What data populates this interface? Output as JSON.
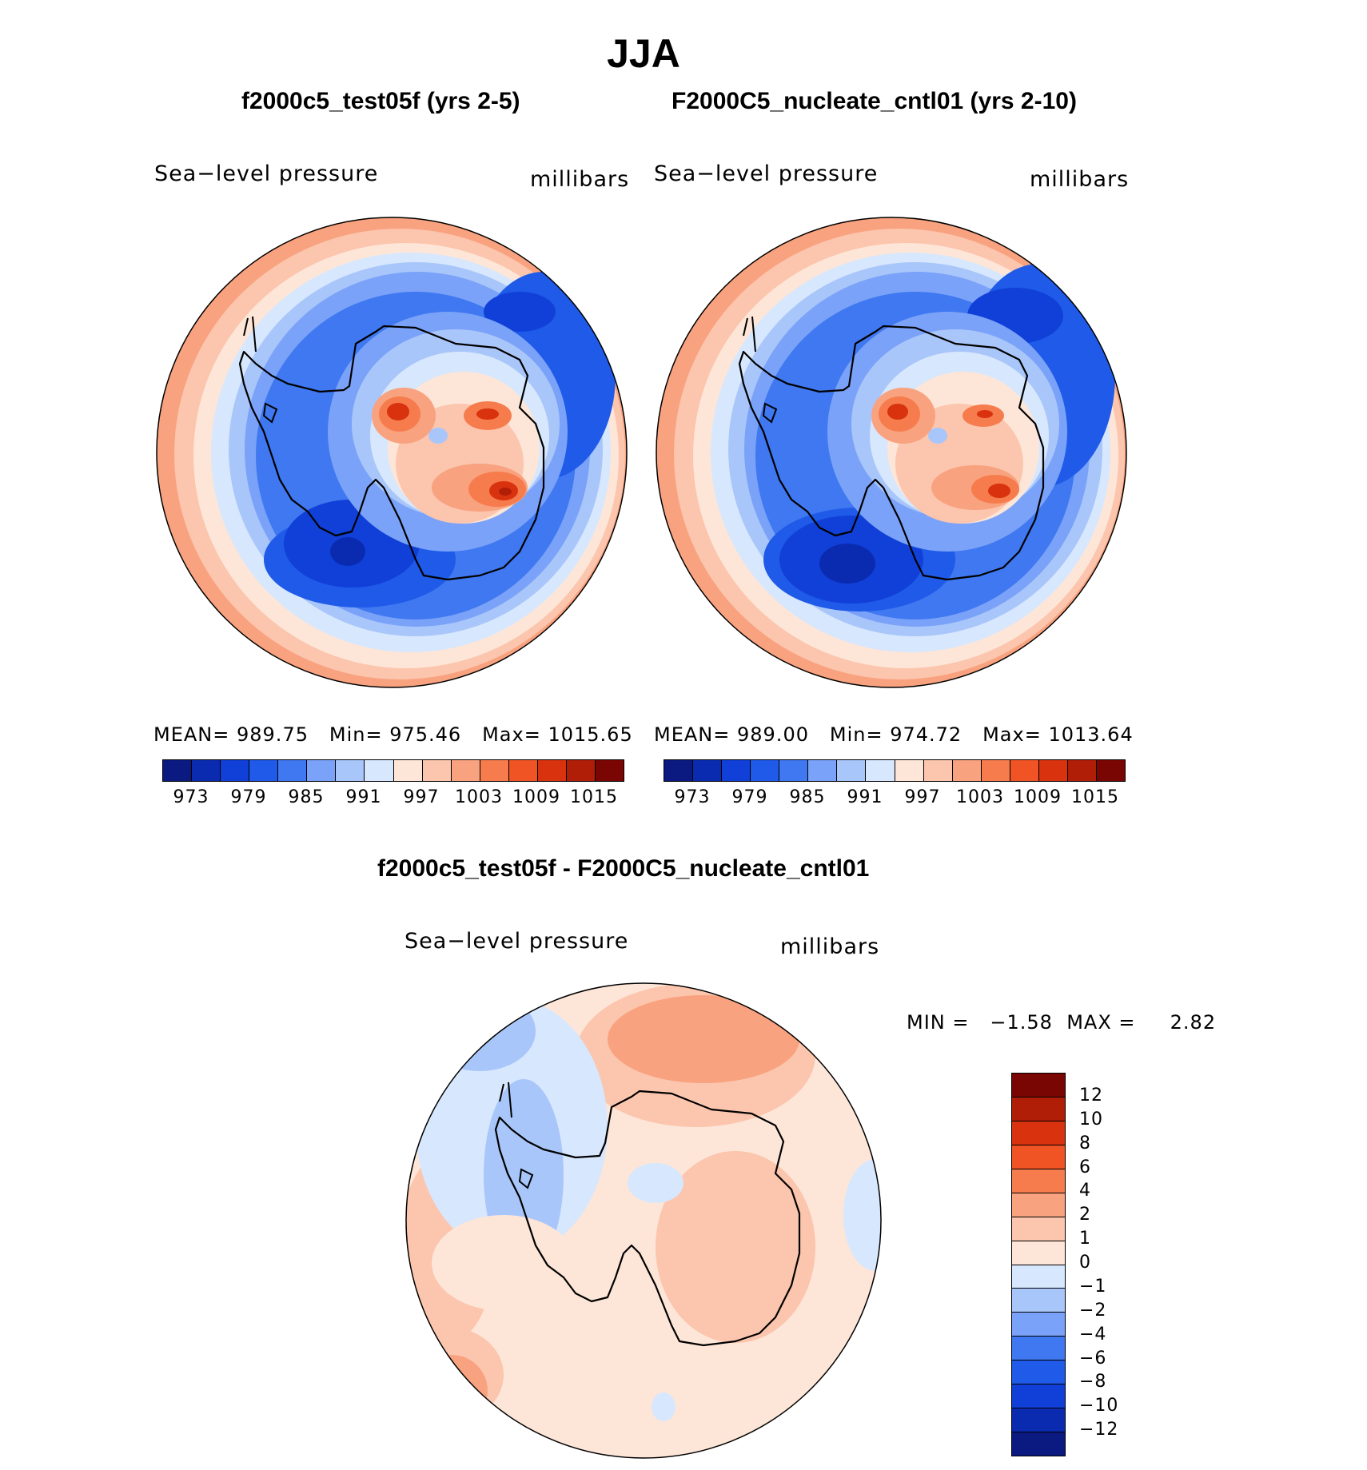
{
  "figure": {
    "title": "JJA"
  },
  "panels": {
    "left": {
      "title": "f2000c5_test05f (yrs 2-5)",
      "variable": "Sea−level pressure",
      "units": "millibars",
      "mean_label": "MEAN=",
      "mean": "989.75",
      "min_label": "Min=",
      "min": "975.46",
      "max_label": "Max=",
      "max": "1015.65"
    },
    "right": {
      "title": "F2000C5_nucleate_cntl01 (yrs 2-10)",
      "variable": "Sea−level pressure",
      "units": "millibars",
      "mean_label": "MEAN=",
      "mean": "989.00",
      "min_label": "Min=",
      "min": "974.72",
      "max_label": "Max=",
      "max": "1013.64"
    },
    "diff": {
      "title": "f2000c5_test05f - F2000C5_nucleate_cntl01",
      "variable": "Sea−level pressure",
      "units": "millibars",
      "min_label": "MIN =",
      "min": "−1.58",
      "max_label": "MAX =",
      "max": "2.82"
    }
  },
  "colorbars": {
    "field": {
      "colors": [
        "#0a1a80",
        "#0a2bb0",
        "#1040d8",
        "#1f5ae8",
        "#3f78f0",
        "#7aa2f8",
        "#a9c6fa",
        "#d7e7fd",
        "#fde6d8",
        "#fcc5ad",
        "#f8a27f",
        "#f67c4d",
        "#f05425",
        "#d8320f",
        "#b01e08",
        "#7a0603"
      ],
      "tick_labels": [
        "973",
        "979",
        "985",
        "991",
        "997",
        "1003",
        "1009",
        "1015"
      ]
    },
    "diff": {
      "colors": [
        "#7a0603",
        "#b01e08",
        "#d8320f",
        "#f05425",
        "#f67c4d",
        "#f8a27f",
        "#fcc5ad",
        "#fde6d8",
        "#d7e7fd",
        "#a9c6fa",
        "#7aa2f8",
        "#3f78f0",
        "#1f5ae8",
        "#1040d8",
        "#0a2bb0",
        "#0a1a80"
      ],
      "tick_labels": [
        "12",
        "10",
        "8",
        "6",
        "4",
        "2",
        "1",
        "0",
        "−1",
        "−2",
        "−4",
        "−6",
        "−8",
        "−10",
        "−12"
      ]
    }
  }
}
